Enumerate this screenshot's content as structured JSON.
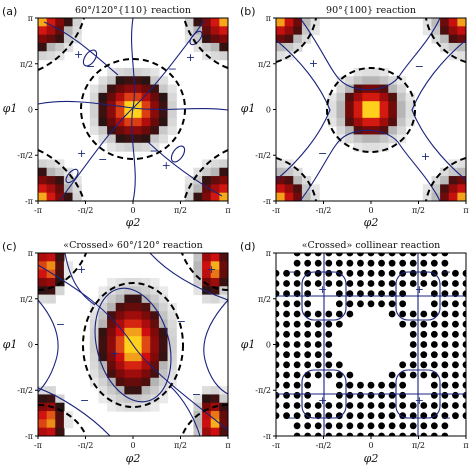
{
  "chart_data": [
    {
      "type": "heatmap",
      "panel_label": "(a)",
      "title": "60°/120°{110} reaction",
      "xlabel": "φ2",
      "ylabel": "φ1",
      "xlim": [
        -3.1416,
        3.1416
      ],
      "ylim": [
        -3.1416,
        3.1416
      ],
      "x_tick_labels": [
        "-π",
        "-π/2",
        "0",
        "π/2",
        "π"
      ],
      "y_tick_labels": [
        "π",
        "π/2",
        "0",
        "-π/2",
        "-π"
      ],
      "grid": false,
      "signs": [
        {
          "text": "+",
          "x": -1.8,
          "y": 1.9
        },
        {
          "text": "+",
          "x": 1.9,
          "y": 1.8
        },
        {
          "text": "−",
          "x": -1.4,
          "y": 1.5
        },
        {
          "text": "−",
          "x": 1.3,
          "y": 1.4
        },
        {
          "text": "+",
          "x": -1.7,
          "y": -1.5
        },
        {
          "text": "+",
          "x": 1.1,
          "y": -1.9
        },
        {
          "text": "−",
          "x": -1.0,
          "y": -1.7
        },
        {
          "text": "−",
          "x": 0.7,
          "y": -1.4
        }
      ]
    },
    {
      "type": "heatmap",
      "panel_label": "(b)",
      "title": "90°{100} reaction",
      "xlabel": "φ2",
      "ylabel": "φ1",
      "xlim": [
        -3.1416,
        3.1416
      ],
      "ylim": [
        -3.1416,
        3.1416
      ],
      "x_tick_labels": [
        "-π",
        "-π/2",
        "0",
        "π/2",
        "π"
      ],
      "y_tick_labels": [
        "π",
        "π/2",
        "0",
        "-π/2",
        "-π"
      ],
      "grid": false,
      "signs": [
        {
          "text": "+",
          "x": -1.9,
          "y": 1.6
        },
        {
          "text": "−",
          "x": 1.6,
          "y": 1.5
        },
        {
          "text": "−",
          "x": -1.6,
          "y": -1.5
        },
        {
          "text": "+",
          "x": 1.8,
          "y": -1.6
        }
      ]
    },
    {
      "type": "heatmap",
      "panel_label": "(c)",
      "title": "«Crossed» 60°/120° reaction",
      "xlabel": "φ2",
      "ylabel": "φ1",
      "xlim": [
        -3.1416,
        3.1416
      ],
      "ylim": [
        -3.1416,
        3.1416
      ],
      "x_tick_labels": [
        "-π",
        "-π/2",
        "0",
        "π/2",
        "π"
      ],
      "y_tick_labels": [
        "π",
        "π/2",
        "0",
        "-π/2",
        "-π"
      ],
      "grid": false,
      "signs": [
        {
          "text": "+",
          "x": -1.7,
          "y": 2.6
        },
        {
          "text": "+",
          "x": 2.6,
          "y": 2.6
        },
        {
          "text": "−",
          "x": -2.4,
          "y": 0.7
        },
        {
          "text": "−",
          "x": 1.6,
          "y": 0.8
        },
        {
          "text": "+",
          "x": -0.6,
          "y": -0.3
        },
        {
          "text": "−",
          "x": -1.6,
          "y": -1.9
        },
        {
          "text": "−",
          "x": 2.1,
          "y": -1.7
        }
      ]
    },
    {
      "type": "scatter",
      "panel_label": "(d)",
      "title": "«Crossed» collinear reaction",
      "xlabel": "φ2",
      "ylabel": "φ1",
      "xlim": [
        -3.1416,
        3.1416
      ],
      "ylim": [
        -3.1416,
        3.1416
      ],
      "x_tick_labels": [
        "-π",
        "-π/2",
        "0",
        "π/2",
        "π"
      ],
      "y_tick_labels": [
        "π",
        "π/2",
        "0",
        "-π/2",
        "-π"
      ],
      "grid": false,
      "signs": [
        {
          "text": "−",
          "x": -2.6,
          "y": 2.5
        },
        {
          "text": "−",
          "x": 2.5,
          "y": 2.5
        },
        {
          "text": "+",
          "x": -1.6,
          "y": 1.9
        },
        {
          "text": "+",
          "x": 1.6,
          "y": 1.9
        },
        {
          "text": "+",
          "x": -1.6,
          "y": -1.9
        },
        {
          "text": "+",
          "x": 1.6,
          "y": -1.9
        },
        {
          "text": "−",
          "x": -2.6,
          "y": -2.5
        },
        {
          "text": "−",
          "x": 2.5,
          "y": -2.5
        }
      ]
    }
  ],
  "colors": {
    "contour": "#1a237e",
    "dashed": "#000000",
    "heat_low": "#b4b4b4",
    "heat_mid": "#d01010",
    "heat_high": "#ffd21e",
    "dots": "#000000"
  }
}
